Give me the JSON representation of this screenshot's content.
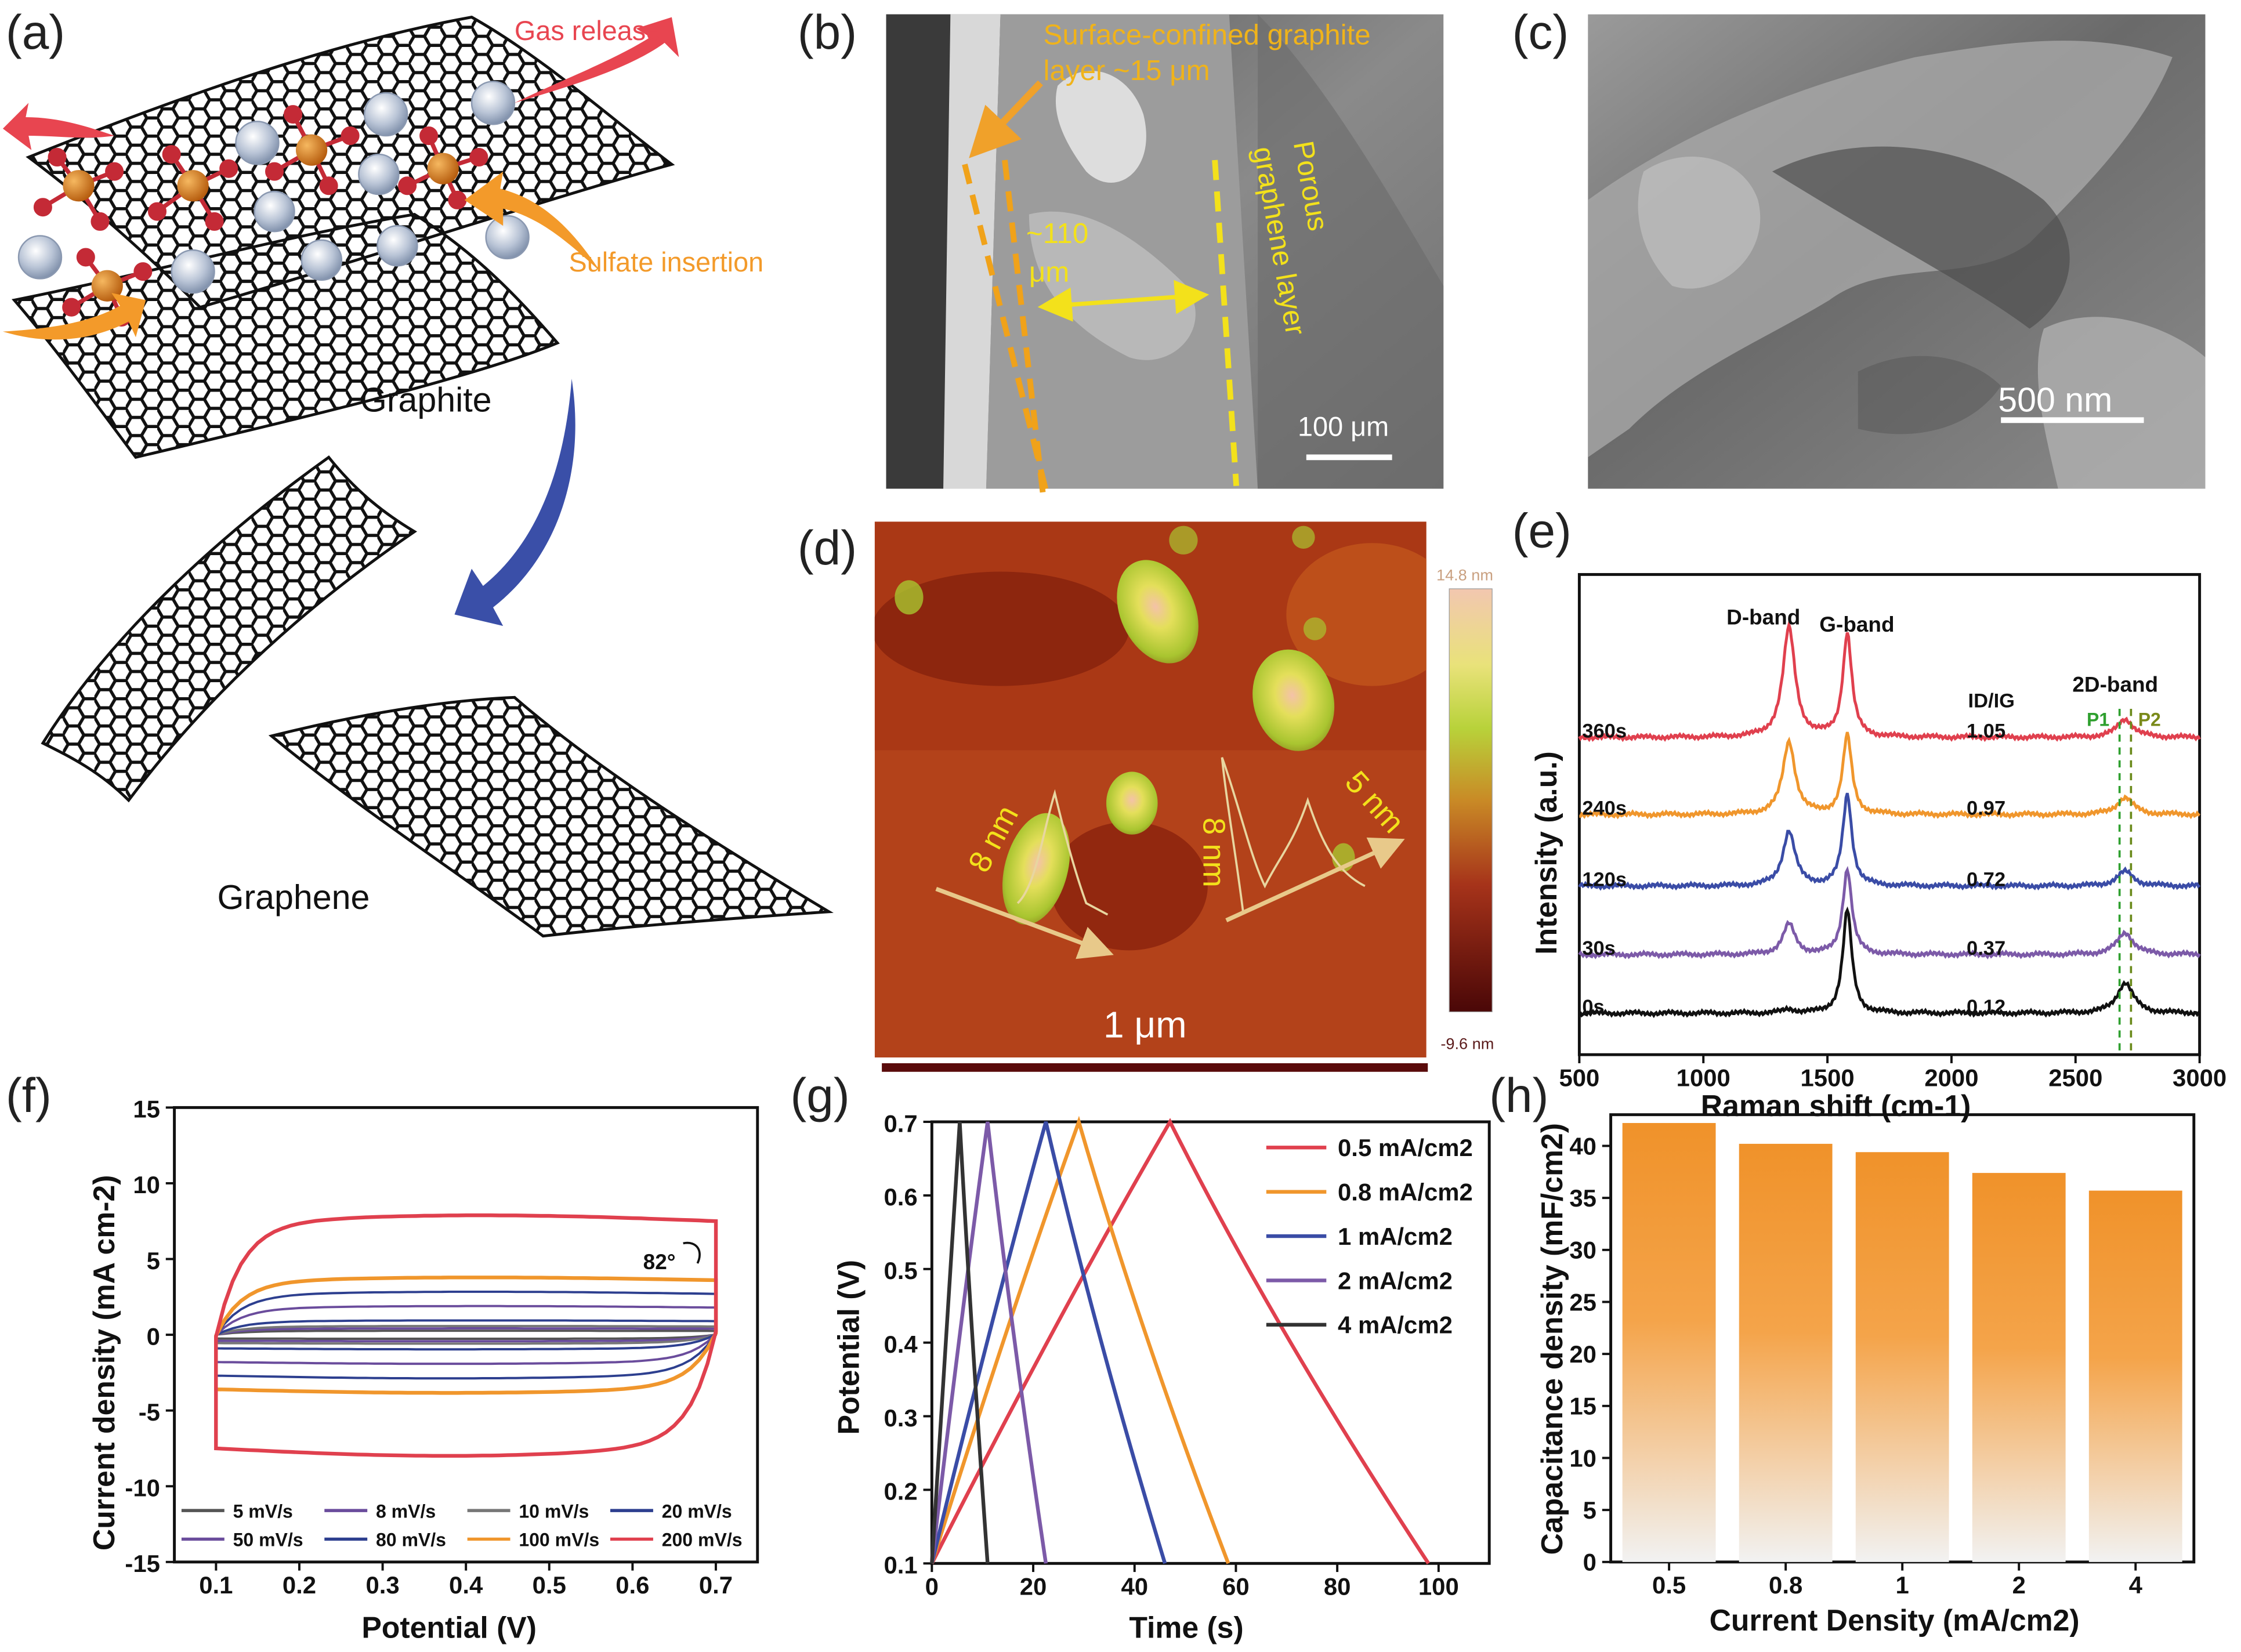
{
  "panel_labels": {
    "a": "(a)",
    "b": "(b)",
    "c": "(c)",
    "d": "(d)",
    "e": "(e)",
    "f": "(f)",
    "g": "(g)",
    "h": "(h)"
  },
  "panel_a": {
    "gas_release": "Gas release",
    "sulfate_insertion": "Sulfate insertion",
    "graphite": "Graphite",
    "graphene": "Graphene",
    "colors": {
      "sulfur": "#c8701a",
      "oxygen": "#c42a36",
      "gas_arrow": "#e84550",
      "sulfate_arrow": "#f39a2a",
      "exfoliation_arrow": "#3a4fa8"
    }
  },
  "panel_b": {
    "annotation_top": "Surface-confined graphite",
    "annotation_top2": "layer ~15 μm",
    "thickness_line1": "~110",
    "thickness_line2": "μm",
    "porous_line1": "Porous",
    "porous_line2": "graphene layer",
    "scale": "100 μm"
  },
  "panel_c": {
    "scale": "500 nm"
  },
  "panel_d": {
    "colorbar_max": "14.8 nm",
    "colorbar_min": "-9.6 nm",
    "profile_left": "8 nm",
    "profile_mid": "8 nm",
    "profile_right": "5 nm",
    "scale": "1 μm"
  },
  "chart_data": [
    {
      "id": "e",
      "type": "line",
      "title": "",
      "xlabel": "Raman shift (cm-1)",
      "ylabel": "Intensity (a.u.)",
      "xlim": [
        500,
        3000
      ],
      "x_ticks": [
        500,
        1000,
        1500,
        2000,
        2500,
        3000
      ],
      "band_labels": [
        "D-band",
        "G-band",
        "2D-band"
      ],
      "ratio_header": "ID/IG",
      "peak_markers": [
        "P1",
        "P2"
      ],
      "series": [
        {
          "name": "360s",
          "ratio": "1.05",
          "color": "#e0404e",
          "d_height": 0.9,
          "g_height": 0.85,
          "twod_height": 0.15
        },
        {
          "name": "240s",
          "ratio": "0.97",
          "color": "#f0962c",
          "d_height": 0.6,
          "g_height": 0.65,
          "twod_height": 0.14
        },
        {
          "name": "120s",
          "ratio": "0.72",
          "color": "#3a4ca6",
          "d_height": 0.45,
          "g_height": 0.75,
          "twod_height": 0.12
        },
        {
          "name": "30s",
          "ratio": "0.37",
          "color": "#7c5aa8",
          "d_height": 0.25,
          "g_height": 0.7,
          "twod_height": 0.18
        },
        {
          "name": "0s",
          "ratio": "0.12",
          "color": "#111111",
          "d_height": 0.03,
          "g_height": 0.85,
          "twod_height": 0.25
        }
      ]
    },
    {
      "id": "f",
      "type": "line",
      "title": "",
      "xlabel": "Potential (V)",
      "ylabel": "Current density (mA cm-2)",
      "xlim": [
        0.05,
        0.75
      ],
      "ylim": [
        -15,
        15
      ],
      "x_ticks": [
        0.1,
        0.2,
        0.3,
        0.4,
        0.5,
        0.6,
        0.7
      ],
      "y_ticks": [
        -15,
        -10,
        -5,
        0,
        5,
        10,
        15
      ],
      "annotation": "82°",
      "series": [
        {
          "name": "5 mV/s",
          "color": "#555555",
          "amplitude": 0.25
        },
        {
          "name": "8 mV/s",
          "color": "#6a4c9c",
          "amplitude": 0.4
        },
        {
          "name": "10 mV/s",
          "color": "#777777",
          "amplitude": 0.55
        },
        {
          "name": "20 mV/s",
          "color": "#2d3f8f",
          "amplitude": 0.9
        },
        {
          "name": "50 mV/s",
          "color": "#6a4c9c",
          "amplitude": 1.8
        },
        {
          "name": "80 mV/s",
          "color": "#2d3f8f",
          "amplitude": 2.7
        },
        {
          "name": "100 mV/s",
          "color": "#f0962c",
          "amplitude": 3.6
        },
        {
          "name": "200 mV/s",
          "color": "#e0404e",
          "amplitude": 7.5
        }
      ]
    },
    {
      "id": "g",
      "type": "line",
      "title": "",
      "xlabel": "Time (s)",
      "ylabel": "Potential (V)",
      "xlim": [
        0,
        110
      ],
      "ylim": [
        0.1,
        0.7
      ],
      "x_ticks": [
        0,
        20,
        40,
        60,
        80,
        100
      ],
      "y_ticks": [
        0.1,
        0.2,
        0.3,
        0.4,
        0.5,
        0.6,
        0.7
      ],
      "series": [
        {
          "name": "0.5 mA/cm2",
          "color": "#e0404e",
          "peak_t": 47,
          "end_t": 98
        },
        {
          "name": "0.8 mA/cm2",
          "color": "#f0962c",
          "peak_t": 29,
          "end_t": 58.5
        },
        {
          "name": "1  mA/cm2",
          "color": "#3a4ca6",
          "peak_t": 22.5,
          "end_t": 46
        },
        {
          "name": "2  mA/cm2",
          "color": "#7c5aa8",
          "peak_t": 11,
          "end_t": 22.5
        },
        {
          "name": "4  mA/cm2",
          "color": "#333333",
          "peak_t": 5.5,
          "end_t": 11
        }
      ]
    },
    {
      "id": "h",
      "type": "bar",
      "title": "",
      "xlabel": "Current Density (mA/cm2)",
      "ylabel": "Capacitance density (mF/cm2)",
      "ylim": [
        0,
        43
      ],
      "y_ticks": [
        0,
        5,
        10,
        15,
        20,
        25,
        30,
        35,
        40
      ],
      "categories": [
        "0.5",
        "0.8",
        "1",
        "2",
        "4"
      ],
      "values": [
        42.2,
        40.2,
        39.4,
        37.4,
        35.7
      ],
      "color": "#f0922a"
    }
  ]
}
